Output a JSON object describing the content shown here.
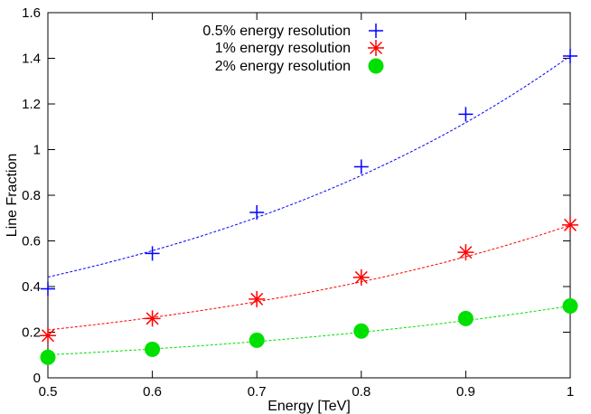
{
  "chart_data": {
    "type": "line",
    "title": "",
    "xlabel": "Energy [TeV]",
    "ylabel": "Line Fraction",
    "xlim": [
      0.5,
      1.0
    ],
    "ylim": [
      0,
      1.6
    ],
    "x_ticks": [
      "0.5",
      "0.6",
      "0.7",
      "0.8",
      "0.9",
      "1"
    ],
    "y_ticks": [
      "0",
      "0.2",
      "0.4",
      "0.6",
      "0.8",
      "1",
      "1.2",
      "1.4",
      "1.6"
    ],
    "grid": false,
    "legend_position": "top-center",
    "x": [
      0.5,
      0.6,
      0.7,
      0.8,
      0.9,
      1.0
    ],
    "series": [
      {
        "name": "0.5% energy resolution",
        "marker": "plus",
        "color": "#0000ff",
        "values": [
          0.39,
          0.545,
          0.725,
          0.925,
          1.155,
          1.41
        ],
        "fit": {
          "a": 0.1383,
          "b": 2.3224
        }
      },
      {
        "name": "1% energy resolution",
        "marker": "star",
        "color": "#ff0000",
        "values": [
          0.185,
          0.26,
          0.345,
          0.44,
          0.55,
          0.67
        ],
        "fit": {
          "a": 0.0659,
          "b": 2.3174
        }
      },
      {
        "name": "2% energy resolution",
        "marker": "circle",
        "color": "#00e000",
        "values": [
          0.09,
          0.125,
          0.165,
          0.205,
          0.26,
          0.315
        ],
        "fit": {
          "a": 0.0322,
          "b": 2.2819
        }
      }
    ]
  }
}
